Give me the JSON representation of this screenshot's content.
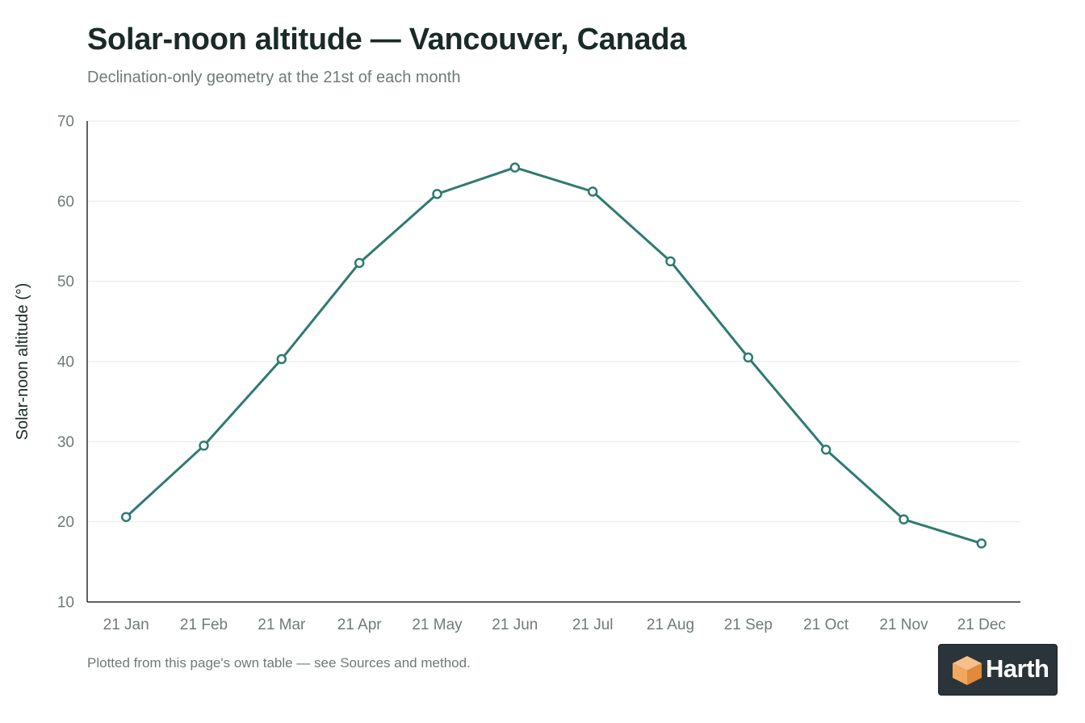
{
  "header": {
    "title": "Solar-noon altitude — Vancouver, Canada",
    "subtitle": "Declination-only geometry at the 21st of each month"
  },
  "footnote": "Plotted from this page's own table — see Sources and method.",
  "logo": {
    "text": "Harth",
    "icon": "cube-icon"
  },
  "colors": {
    "line": "#2f7a70",
    "grid": "#e6e9e8",
    "axis": "#2a2f2e",
    "tick_text": "#6f7a77",
    "label_text": "#1b2a27",
    "logo_bg": "#2b3539",
    "logo_orange": "#f2a75e"
  },
  "chart_data": {
    "type": "line",
    "title": "Solar-noon altitude — Vancouver, Canada",
    "subtitle": "Declination-only geometry at the 21st of each month",
    "xlabel": "",
    "ylabel": "Solar-noon altitude (°)",
    "categories": [
      "21 Jan",
      "21 Feb",
      "21 Mar",
      "21 Apr",
      "21 May",
      "21 Jun",
      "21 Jul",
      "21 Aug",
      "21 Sep",
      "21 Oct",
      "21 Nov",
      "21 Dec"
    ],
    "series": [
      {
        "values": [
          20.6,
          29.5,
          40.3,
          52.3,
          60.9,
          64.2,
          61.2,
          52.5,
          40.5,
          29.0,
          20.3,
          17.3
        ]
      }
    ],
    "ylim": [
      10,
      70
    ],
    "yticks": [
      10,
      20,
      30,
      40,
      50,
      60,
      70
    ],
    "grid": true,
    "legend": "none",
    "markers": "hollow-circle"
  }
}
